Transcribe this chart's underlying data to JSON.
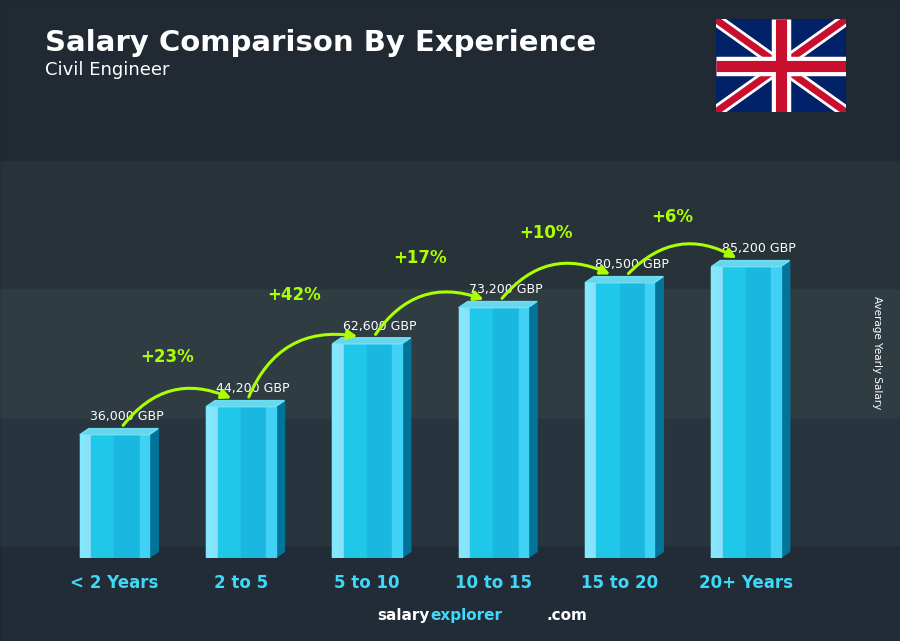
{
  "categories": [
    "< 2 Years",
    "2 to 5",
    "5 to 10",
    "10 to 15",
    "15 to 20",
    "20+ Years"
  ],
  "values": [
    36000,
    44200,
    62600,
    73200,
    80500,
    85200
  ],
  "salary_labels": [
    "36,000 GBP",
    "44,200 GBP",
    "62,600 GBP",
    "73,200 GBP",
    "80,500 GBP",
    "85,200 GBP"
  ],
  "pct_changes": [
    "+23%",
    "+42%",
    "+17%",
    "+10%",
    "+6%"
  ],
  "bar_color_face": "#1EC8E8",
  "bar_color_dark": "#0078A0",
  "bar_color_top": "#70E8FF",
  "bar_color_light": "#50D8F8",
  "title": "Salary Comparison By Experience",
  "subtitle": "Civil Engineer",
  "ylabel": "Average Yearly Salary",
  "bg_color_top": "#3a4a5a",
  "bg_color_bot": "#1a2a3a",
  "title_color": "#FFFFFF",
  "subtitle_color": "#FFFFFF",
  "salary_label_color": "#FFFFFF",
  "pct_color": "#AAFF00",
  "cat_label_color": "#40D8F8",
  "ylabel_color": "#FFFFFF",
  "footer_salary_color": "#FFFFFF",
  "footer_explorer_color": "#40D8F8",
  "ylim_max": 100000,
  "bar_width": 0.55,
  "depth_ratio": 0.13
}
